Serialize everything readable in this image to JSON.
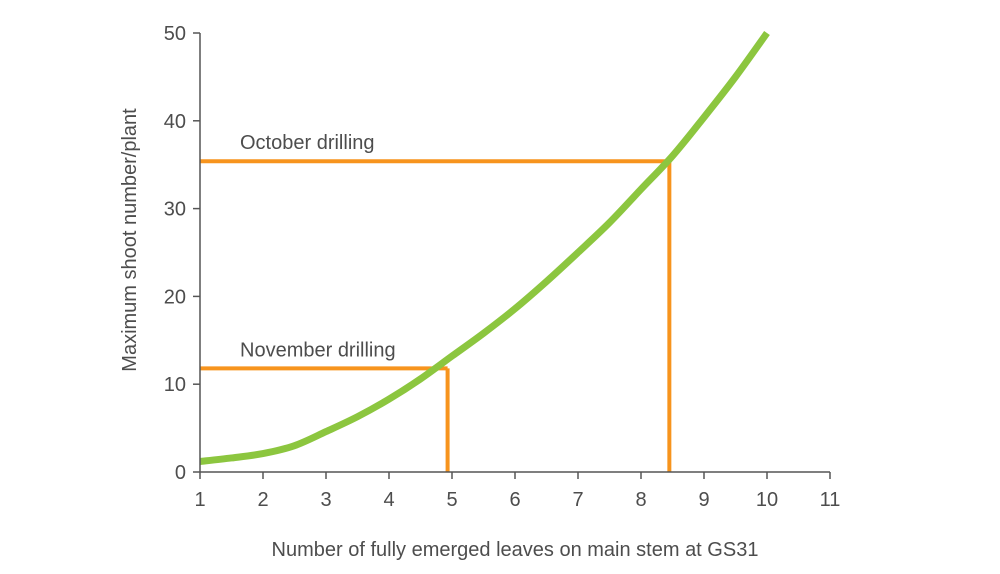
{
  "chart_data": {
    "type": "line",
    "title": "",
    "xlabel": "Number of fully emerged leaves on main stem at GS31",
    "ylabel": "Maximum shoot number/plant",
    "xlim": [
      1,
      11
    ],
    "ylim": [
      0,
      50
    ],
    "x_ticks": [
      1,
      2,
      3,
      4,
      5,
      6,
      7,
      8,
      9,
      10,
      11
    ],
    "y_ticks": [
      0,
      10,
      20,
      30,
      40,
      50
    ],
    "grid": false,
    "legend": "none",
    "series": [
      {
        "color": "#8cc63f",
        "x": [
          1,
          1.5,
          2,
          2.5,
          3,
          3.5,
          4,
          4.5,
          5,
          5.5,
          6,
          6.5,
          7,
          7.5,
          8,
          8.5,
          9,
          9.5,
          10
        ],
        "y": [
          1.2,
          1.6,
          2.1,
          3.0,
          4.6,
          6.3,
          8.3,
          10.6,
          13.2,
          15.8,
          18.6,
          21.7,
          25.0,
          28.4,
          32.2,
          36.0,
          40.4,
          45.0,
          50.0
        ]
      }
    ],
    "annotations": [
      {
        "label": "October drilling",
        "x": 8.45,
        "y": 35.4,
        "color": "#f7941d"
      },
      {
        "label": "November drilling",
        "x": 4.93,
        "y": 11.8,
        "color": "#f7941d"
      }
    ]
  }
}
